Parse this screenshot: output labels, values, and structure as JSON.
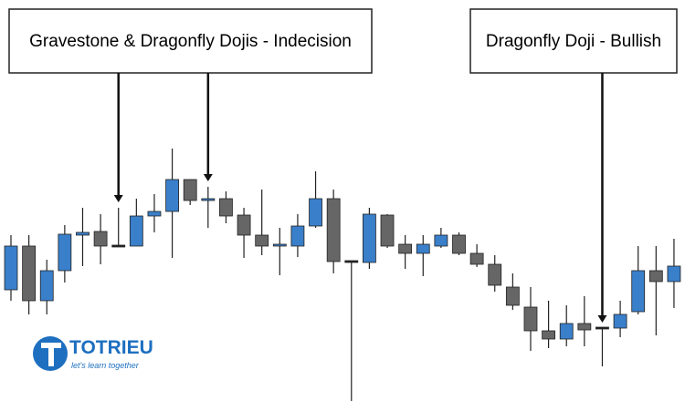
{
  "chart_data": {
    "type": "candlestick",
    "ylim": [
      0,
      451
    ],
    "up_color": "#3a7fca",
    "down_color": "#666666",
    "doji_color": "#222222",
    "open": [
      133,
      181,
      121,
      154,
      193,
      197,
      181,
      181,
      214,
      219,
      254,
      231,
      233,
      215,
      193,
      181,
      181,
      203,
      233,
      164,
      163,
      215,
      183,
      173,
      181,
      193,
      173,
      161,
      136,
      114,
      88,
      79,
      96,
      91,
      91,
      109,
      154,
      142
    ],
    "high": [
      193,
      193,
      166,
      204,
      223,
      216,
      223,
      233,
      238,
      288,
      254,
      246,
      241,
      223,
      243,
      201,
      216,
      263,
      243,
      164,
      223,
      216,
      193,
      193,
      201,
      196,
      183,
      171,
      151,
      136,
      121,
      116,
      126,
      91,
      121,
      181,
      181,
      189
    ],
    "low": [
      121,
      106,
      106,
      141,
      159,
      161,
      181,
      181,
      196,
      168,
      226,
      201,
      206,
      168,
      171,
      149,
      169,
      201,
      151,
      11,
      156,
      179,
      156,
      148,
      179,
      171,
      158,
      131,
      111,
      66,
      69,
      71,
      71,
      49,
      81,
      106,
      83,
      113
    ],
    "close": [
      181,
      121,
      154,
      194,
      196,
      181,
      181,
      214,
      219,
      254,
      231,
      233,
      214,
      193,
      181,
      182,
      203,
      233,
      164,
      164,
      216,
      181,
      173,
      183,
      193,
      173,
      161,
      138,
      116,
      88,
      79,
      96,
      89,
      91,
      106,
      154,
      142,
      159
    ],
    "annotations": [
      {
        "text": "Gravestone & Dragonfly Dojis - Indecision",
        "targets": [
          6,
          11
        ]
      },
      {
        "text": "Dragonfly Doji - Bullish",
        "targets": [
          33
        ]
      }
    ],
    "watermark": {
      "name": "TOTRIEU",
      "tagline": "let's learn together"
    }
  }
}
